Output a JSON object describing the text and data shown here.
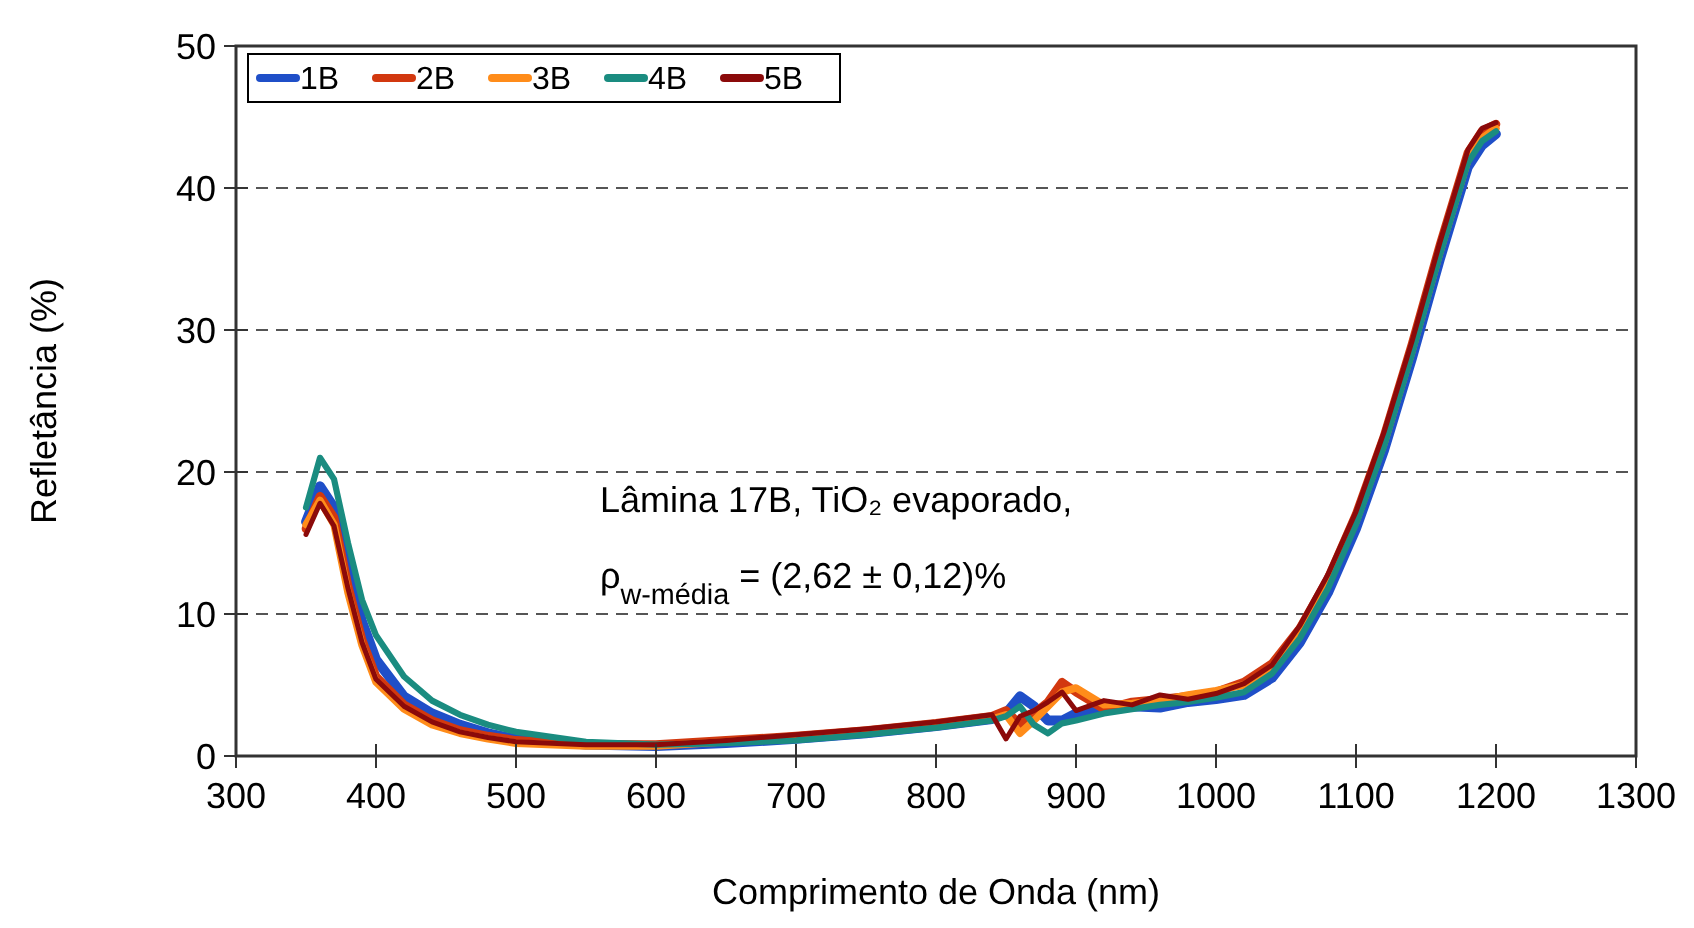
{
  "chart_data": {
    "type": "line",
    "xlabel": "Comprimento de Onda (nm)",
    "ylabel": "Refletância (%)",
    "x": [
      350,
      360,
      370,
      380,
      390,
      400,
      420,
      440,
      460,
      480,
      500,
      550,
      600,
      650,
      700,
      750,
      800,
      840,
      850,
      860,
      870,
      880,
      890,
      900,
      920,
      940,
      960,
      980,
      1000,
      1020,
      1040,
      1060,
      1080,
      1100,
      1120,
      1140,
      1160,
      1180,
      1190,
      1200
    ],
    "series": [
      {
        "name": "1B",
        "color": "#1f4fc8",
        "values": [
          16.5,
          19,
          17.5,
          13,
          9.5,
          6.8,
          4.2,
          3,
          2.2,
          1.6,
          1.2,
          0.8,
          0.7,
          0.9,
          1.2,
          1.6,
          2.1,
          2.6,
          3,
          4.2,
          3.5,
          2.5,
          2.5,
          3,
          3.2,
          3.5,
          3.4,
          3.8,
          4,
          4.3,
          5.5,
          8,
          11.5,
          16,
          21.5,
          28,
          35,
          41.5,
          43,
          43.8
        ]
      },
      {
        "name": "2B",
        "color": "#d2380f",
        "values": [
          16,
          18.3,
          16.8,
          12,
          8.2,
          5.6,
          3.6,
          2.5,
          1.8,
          1.4,
          1.1,
          0.8,
          0.8,
          1.1,
          1.4,
          1.8,
          2.3,
          2.8,
          3.2,
          2.2,
          3,
          3.8,
          5.2,
          4.5,
          3.3,
          3.8,
          4,
          4.2,
          4.5,
          5.2,
          6.5,
          9,
          12.5,
          17,
          22.5,
          29,
          36,
          42.5,
          44,
          44.5
        ]
      },
      {
        "name": "3B",
        "color": "#ff8c1a",
        "values": [
          16.3,
          18,
          16.3,
          11.5,
          7.8,
          5.2,
          3.3,
          2.2,
          1.6,
          1.2,
          0.9,
          0.7,
          0.7,
          1,
          1.3,
          1.7,
          2.2,
          2.6,
          2.9,
          1.6,
          2.5,
          3.5,
          4.5,
          4.8,
          3.6,
          3.7,
          3.9,
          4.3,
          4.6,
          5,
          6.2,
          8.8,
          12.2,
          16.5,
          22,
          28.5,
          35.5,
          42,
          43.5,
          44.2
        ]
      },
      {
        "name": "4B",
        "color": "#1a8c80",
        "values": [
          17.5,
          21,
          19.5,
          15,
          11,
          8.5,
          5.6,
          3.9,
          2.9,
          2.2,
          1.7,
          1,
          0.8,
          0.9,
          1.1,
          1.5,
          2,
          2.5,
          2.8,
          3.5,
          2.2,
          1.6,
          2.3,
          2.5,
          3,
          3.3,
          3.6,
          3.8,
          4.1,
          4.5,
          5.8,
          8.3,
          11.8,
          16.3,
          21.8,
          28.3,
          35.3,
          41.8,
          43.3,
          44
        ]
      },
      {
        "name": "5B",
        "color": "#8b0a0a",
        "values": [
          15.6,
          17.8,
          16.2,
          11.8,
          8,
          5.4,
          3.5,
          2.4,
          1.7,
          1.3,
          1,
          0.8,
          0.8,
          1.1,
          1.5,
          1.9,
          2.4,
          2.9,
          1.2,
          2.8,
          3.2,
          3.8,
          4.5,
          3.2,
          3.9,
          3.6,
          4.3,
          4,
          4.4,
          5.1,
          6.4,
          9.2,
          12.8,
          17.2,
          22.8,
          29.2,
          36.2,
          42.7,
          44.2,
          44.6
        ]
      }
    ],
    "xlim": [
      300,
      1300
    ],
    "xticks": [
      300,
      400,
      500,
      600,
      700,
      800,
      900,
      1000,
      1100,
      1200,
      1300
    ],
    "ylim": [
      0,
      50
    ],
    "yticks": [
      0,
      10,
      20,
      30,
      40,
      50
    ],
    "grid": "y",
    "legend": "top left",
    "marker": "none",
    "line_style": "solid",
    "annotations": [
      "Lâmina 17B, TiO₂ evaporado,",
      "ρ$_{w-média}$ = (2,62 ± 0,12)%"
    ]
  }
}
